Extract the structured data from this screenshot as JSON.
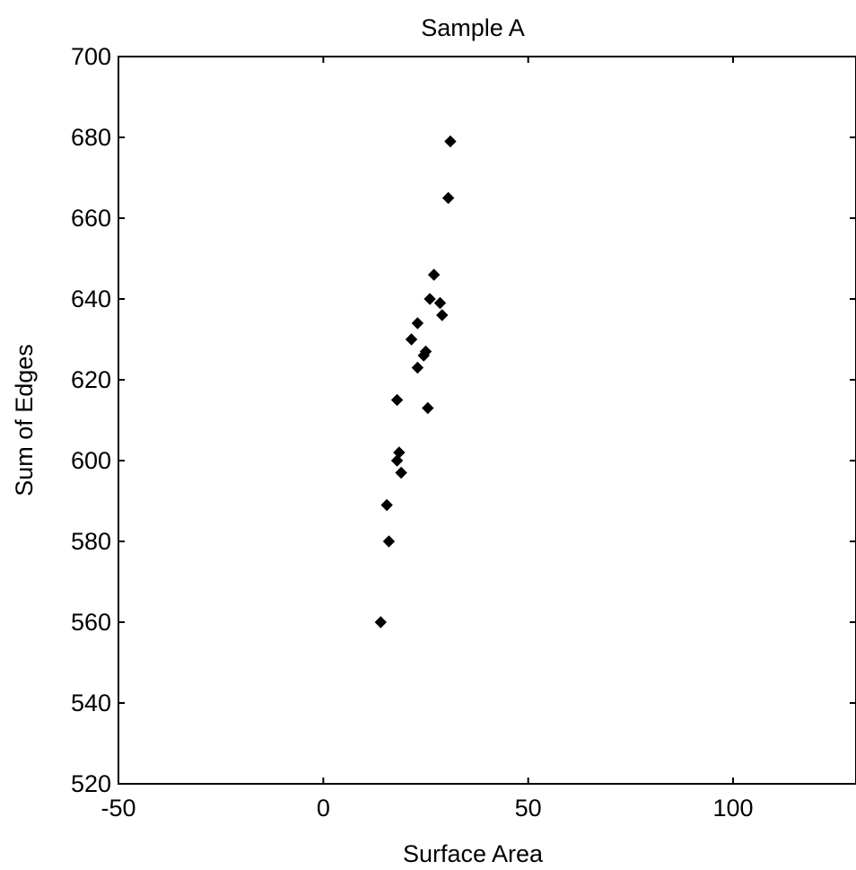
{
  "chart_data": {
    "type": "scatter",
    "title": "Sample A",
    "xlabel": "Surface Area",
    "ylabel": "Sum of Edges",
    "xlim": [
      -50,
      130
    ],
    "ylim": [
      520,
      700
    ],
    "xticks": [
      "-50",
      "0",
      "50",
      "100"
    ],
    "yticks": [
      "520",
      "540",
      "560",
      "580",
      "600",
      "620",
      "640",
      "660",
      "680",
      "700"
    ],
    "grid": false,
    "marker": "diamond",
    "marker_color": "#000000",
    "series": [
      {
        "points": [
          {
            "x": 14.0,
            "y": 560
          },
          {
            "x": 16.0,
            "y": 580
          },
          {
            "x": 15.5,
            "y": 589
          },
          {
            "x": 19.0,
            "y": 597
          },
          {
            "x": 18.0,
            "y": 600
          },
          {
            "x": 18.5,
            "y": 602
          },
          {
            "x": 18.0,
            "y": 615
          },
          {
            "x": 25.5,
            "y": 613
          },
          {
            "x": 23.0,
            "y": 623
          },
          {
            "x": 24.5,
            "y": 626
          },
          {
            "x": 25.0,
            "y": 627
          },
          {
            "x": 21.5,
            "y": 630
          },
          {
            "x": 23.0,
            "y": 634
          },
          {
            "x": 29.0,
            "y": 636
          },
          {
            "x": 28.5,
            "y": 639
          },
          {
            "x": 26.0,
            "y": 640
          },
          {
            "x": 27.0,
            "y": 646
          },
          {
            "x": 30.5,
            "y": 665
          },
          {
            "x": 31.0,
            "y": 679
          }
        ]
      }
    ]
  }
}
